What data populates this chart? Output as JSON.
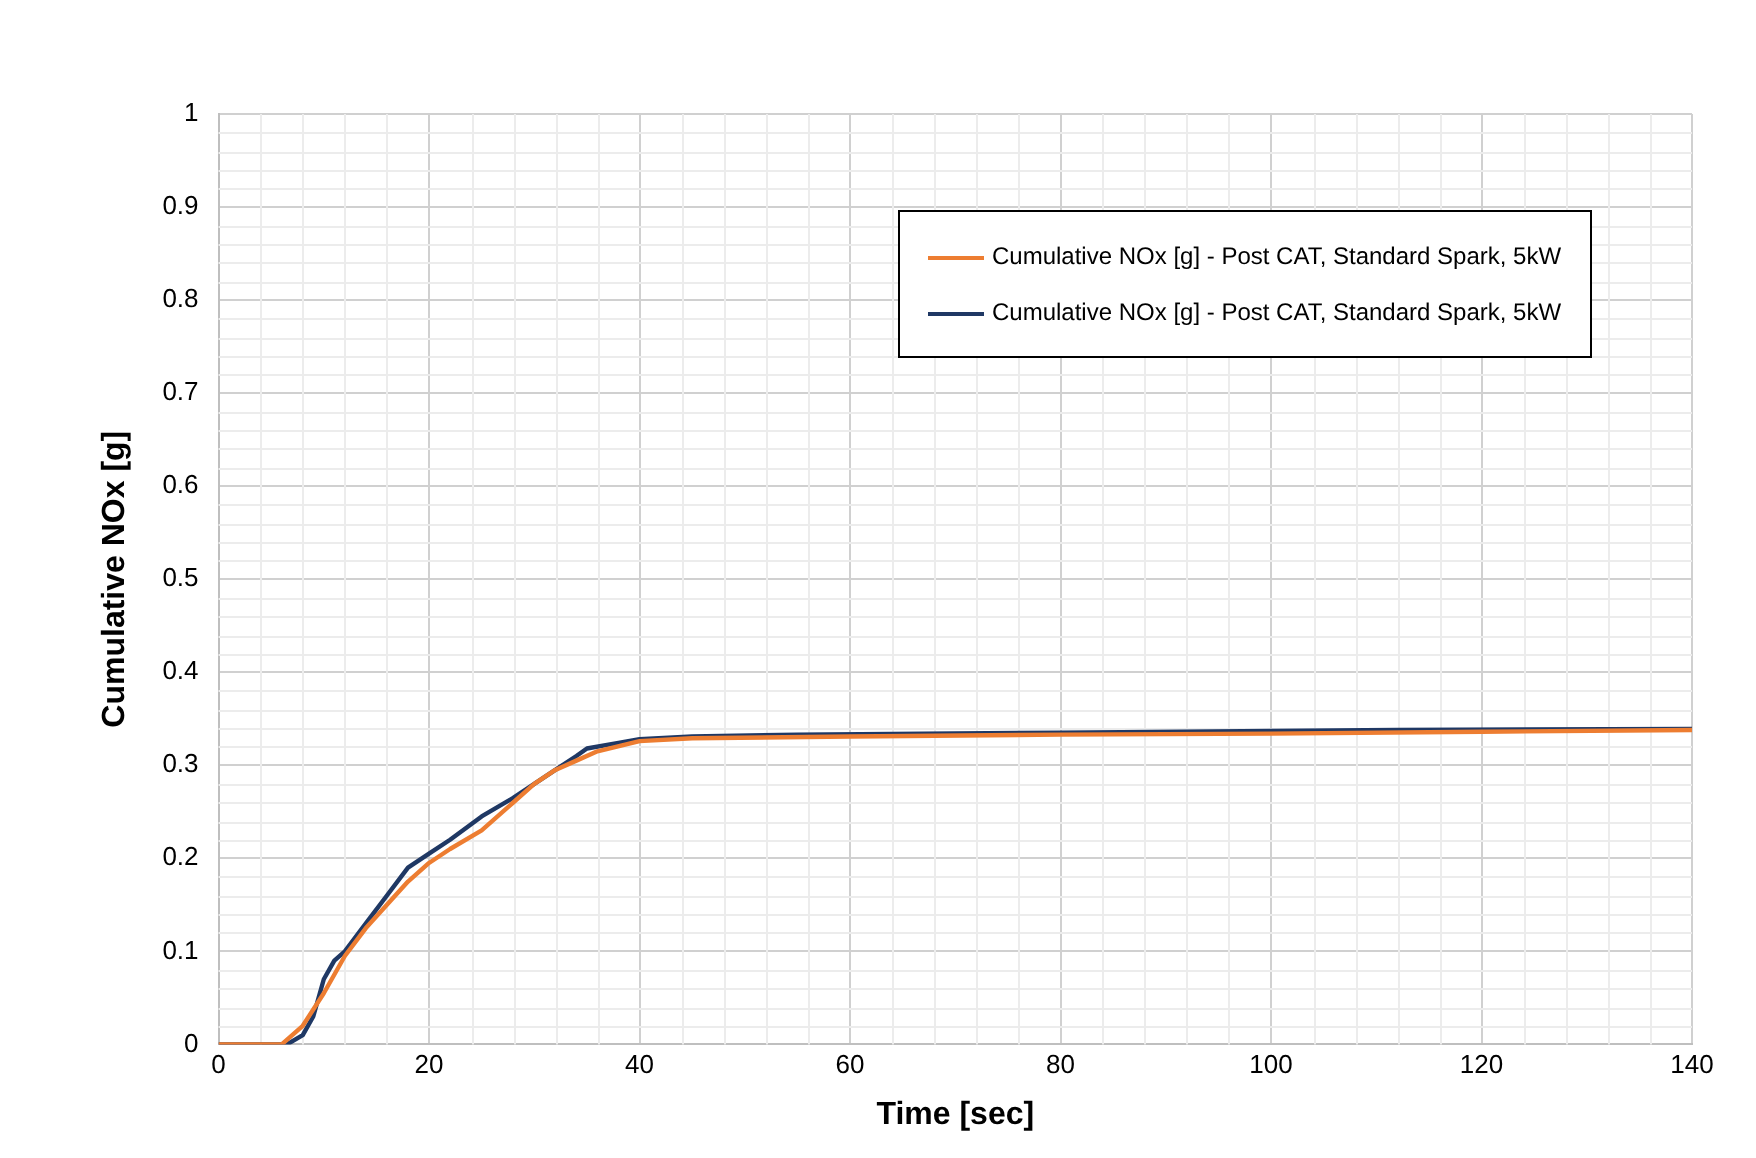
{
  "chart_data": {
    "type": "line",
    "xlabel": "Time [sec]",
    "ylabel": "Cumulative NOx [g]",
    "xlim": [
      0,
      140
    ],
    "xticks": [
      0,
      20,
      40,
      60,
      80,
      100,
      120,
      140
    ],
    "ylim": [
      0,
      1
    ],
    "yticks": [
      0,
      0.1,
      0.2,
      0.3,
      0.4,
      0.5,
      0.6,
      0.7,
      0.8,
      0.9,
      1
    ],
    "grid": true,
    "legend": "top right",
    "marker": "none",
    "line_style": "solid",
    "series": [
      {
        "name": "Cumulative NOx [g] - Post CAT, Standard Spark, 5kW",
        "color": "#ed7d31",
        "x": [
          0,
          4,
          6,
          8,
          10,
          12,
          14,
          16,
          18,
          20,
          22,
          25,
          28,
          30,
          32,
          34,
          36,
          40,
          45,
          60,
          80,
          100,
          120,
          140
        ],
        "values": [
          0,
          0,
          0,
          0.02,
          0.055,
          0.095,
          0.125,
          0.15,
          0.175,
          0.195,
          0.21,
          0.23,
          0.26,
          0.28,
          0.295,
          0.305,
          0.315,
          0.326,
          0.329,
          0.331,
          0.333,
          0.334,
          0.336,
          0.338
        ]
      },
      {
        "name": "Cumulative NOx [g] - Post CAT, Standard Spark, 5kW",
        "color": "#1f3864",
        "x": [
          0,
          4,
          6.5,
          8,
          9,
          10,
          11,
          12,
          14,
          16,
          18,
          20,
          22,
          25,
          28,
          30,
          32,
          34,
          35,
          38,
          40,
          45,
          55,
          80,
          112,
          140
        ],
        "values": [
          0,
          0,
          0,
          0.01,
          0.03,
          0.07,
          0.09,
          0.1,
          0.13,
          0.16,
          0.19,
          0.205,
          0.22,
          0.245,
          0.265,
          0.28,
          0.295,
          0.31,
          0.318,
          0.324,
          0.328,
          0.331,
          0.333,
          0.335,
          0.338,
          0.339
        ]
      }
    ]
  }
}
